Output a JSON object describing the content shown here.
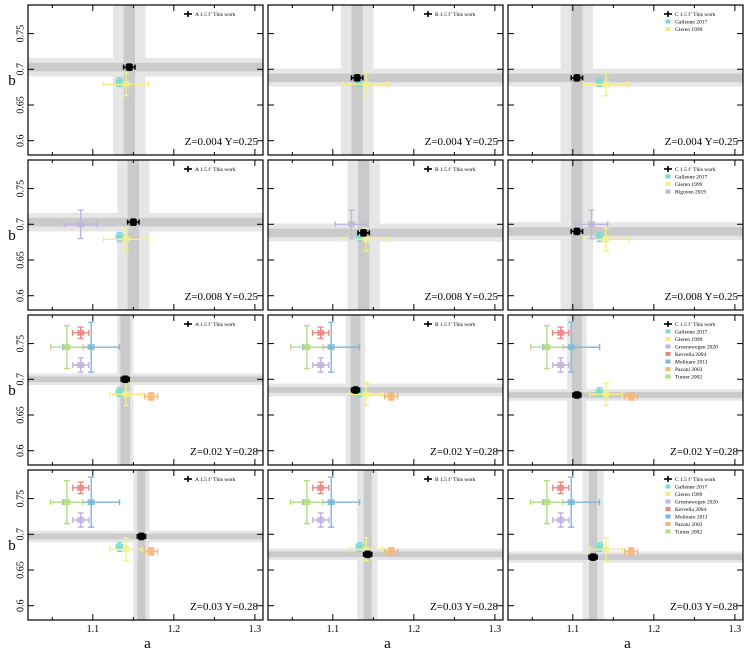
{
  "figure": {
    "xlabel": "a",
    "ylabel": "b",
    "xlim": [
      1.02,
      1.31
    ],
    "ylim": [
      0.58,
      0.79
    ],
    "xticks": [
      "1.1",
      "1.2",
      "1.3"
    ],
    "yticks": [
      "0.6",
      "0.65",
      "0.7",
      "0.75"
    ]
  },
  "colors": {
    "this_work": "#000000",
    "Gallenne 2017": "#7fd9cf",
    "Gieren 1999": "#f3ee8a",
    "Rigoyen 2019": "#c1b5db",
    "Groenewegen 2020": "#c1b5db",
    "Kervella 2004": "#f08585",
    "Molinaro 2011": "#7fb6dc",
    "Pazoni 2003": "#f3b77a",
    "Turner 2002": "#b3dd83",
    "band_dark": "#c4c4c4",
    "band_light": "#e6e6e6"
  },
  "chart_data": [
    {
      "type": "scatter",
      "panel_row": 1,
      "panel_col": 1,
      "annotation": "Z=0.004 Y=0.25",
      "this_work": {
        "label": "A 1.5 f’ This work",
        "a": 1.145,
        "b": 0.703,
        "a_err": 0.007,
        "b_err": 0.004,
        "band_a": [
          1.138,
          1.152
        ],
        "band_a_outer": [
          1.125,
          1.165
        ],
        "band_b": [
          0.697,
          0.709
        ],
        "band_b_outer": [
          0.69,
          0.716
        ]
      },
      "literature": [
        {
          "name": "Gallenne 2017",
          "a": 1.133,
          "b": 0.682,
          "a_err": 0.004,
          "b_err": 0.006
        },
        {
          "name": "Gieren 1999",
          "a": 1.141,
          "b": 0.679,
          "a_err": 0.028,
          "b_err": 0.016
        }
      ]
    },
    {
      "type": "scatter",
      "panel_row": 1,
      "panel_col": 2,
      "annotation": "Z=0.004 Y=0.25",
      "this_work": {
        "label": "B 1.5 f’ This work",
        "a": 1.13,
        "b": 0.688,
        "a_err": 0.007,
        "b_err": 0.004,
        "band_a": [
          1.123,
          1.137
        ],
        "band_a_outer": [
          1.11,
          1.15
        ],
        "band_b": [
          0.682,
          0.694
        ],
        "band_b_outer": [
          0.676,
          0.701
        ]
      },
      "literature": [
        {
          "name": "Gallenne 2017",
          "a": 1.133,
          "b": 0.682,
          "a_err": 0.004,
          "b_err": 0.006
        },
        {
          "name": "Gieren 1999",
          "a": 1.141,
          "b": 0.679,
          "a_err": 0.028,
          "b_err": 0.016
        }
      ]
    },
    {
      "type": "scatter",
      "panel_row": 1,
      "panel_col": 3,
      "annotation": "Z=0.004 Y=0.25",
      "this_work": {
        "label": "C 1.5 f’ This work",
        "a": 1.105,
        "b": 0.688,
        "a_err": 0.007,
        "b_err": 0.004,
        "band_a": [
          1.098,
          1.112
        ],
        "band_a_outer": [
          1.085,
          1.125
        ],
        "band_b": [
          0.682,
          0.694
        ],
        "band_b_outer": [
          0.676,
          0.701
        ]
      },
      "legend": [
        "C 1.5 f’ This work",
        "Gallenne 2017",
        "Gieren 1999"
      ],
      "literature": [
        {
          "name": "Gallenne 2017",
          "a": 1.133,
          "b": 0.682,
          "a_err": 0.004,
          "b_err": 0.006
        },
        {
          "name": "Gieren 1999",
          "a": 1.141,
          "b": 0.679,
          "a_err": 0.028,
          "b_err": 0.016
        }
      ]
    },
    {
      "type": "scatter",
      "panel_row": 2,
      "panel_col": 1,
      "annotation": "Z=0.008 Y=0.25",
      "this_work": {
        "label": "A 1.5 f’ This work",
        "a": 1.15,
        "b": 0.703,
        "a_err": 0.007,
        "b_err": 0.004,
        "band_a": [
          1.143,
          1.157
        ],
        "band_a_outer": [
          1.13,
          1.17
        ],
        "band_b": [
          0.697,
          0.709
        ],
        "band_b_outer": [
          0.69,
          0.716
        ]
      },
      "literature": [
        {
          "name": "Gallenne 2017",
          "a": 1.133,
          "b": 0.682,
          "a_err": 0.004,
          "b_err": 0.006
        },
        {
          "name": "Gieren 1999",
          "a": 1.141,
          "b": 0.679,
          "a_err": 0.028,
          "b_err": 0.016
        },
        {
          "name": "Rigoyen 2019",
          "a": 1.085,
          "b": 0.7,
          "a_err": 0.02,
          "b_err": 0.02
        }
      ]
    },
    {
      "type": "scatter",
      "panel_row": 2,
      "panel_col": 2,
      "annotation": "Z=0.008 Y=0.25",
      "this_work": {
        "label": "B 1.5 f’ This work",
        "a": 1.138,
        "b": 0.688,
        "a_err": 0.007,
        "b_err": 0.004,
        "band_a": [
          1.131,
          1.145
        ],
        "band_a_outer": [
          1.118,
          1.158
        ],
        "band_b": [
          0.682,
          0.694
        ],
        "band_b_outer": [
          0.676,
          0.701
        ]
      },
      "literature": [
        {
          "name": "Gallenne 2017",
          "a": 1.133,
          "b": 0.682,
          "a_err": 0.004,
          "b_err": 0.006
        },
        {
          "name": "Gieren 1999",
          "a": 1.141,
          "b": 0.679,
          "a_err": 0.028,
          "b_err": 0.016
        },
        {
          "name": "Rigoyen 2019",
          "a": 1.123,
          "b": 0.7,
          "a_err": 0.02,
          "b_err": 0.02
        }
      ]
    },
    {
      "type": "scatter",
      "panel_row": 2,
      "panel_col": 3,
      "annotation": "Z=0.008 Y=0.25",
      "this_work": {
        "label": "C 1.5 f’ This work",
        "a": 1.105,
        "b": 0.69,
        "a_err": 0.007,
        "b_err": 0.004,
        "band_a": [
          1.098,
          1.112
        ],
        "band_a_outer": [
          1.085,
          1.125
        ],
        "band_b": [
          0.684,
          0.696
        ],
        "band_b_outer": [
          0.678,
          0.703
        ]
      },
      "legend": [
        "C 1.5 f’ This work",
        "Gallenne 2017",
        "Gieren 1999",
        "Rigoyen 2019"
      ],
      "literature": [
        {
          "name": "Gallenne 2017",
          "a": 1.133,
          "b": 0.682,
          "a_err": 0.004,
          "b_err": 0.006
        },
        {
          "name": "Gieren 1999",
          "a": 1.141,
          "b": 0.679,
          "a_err": 0.028,
          "b_err": 0.016
        },
        {
          "name": "Rigoyen 2019",
          "a": 1.123,
          "b": 0.7,
          "a_err": 0.02,
          "b_err": 0.02
        }
      ]
    },
    {
      "type": "scatter",
      "panel_row": 3,
      "panel_col": 1,
      "annotation": "Z=0.02 Y=0.28",
      "this_work": {
        "label": "A 1.5 f’ This work",
        "a": 1.14,
        "b": 0.7,
        "a_err": 0.004,
        "b_err": 0.004,
        "band_a": [
          1.134,
          1.146
        ],
        "band_a_outer": [
          1.13,
          1.15
        ],
        "band_b": [
          0.696,
          0.704
        ],
        "band_b_outer": [
          0.692,
          0.708
        ]
      },
      "literature": [
        {
          "name": "Gallenne 2017",
          "a": 1.133,
          "b": 0.682,
          "a_err": 0.004,
          "b_err": 0.006
        },
        {
          "name": "Gieren 1999",
          "a": 1.141,
          "b": 0.679,
          "a_err": 0.02,
          "b_err": 0.016
        },
        {
          "name": "Groenewegen 2020",
          "a": 1.085,
          "b": 0.72,
          "a_err": 0.01,
          "b_err": 0.01
        },
        {
          "name": "Kervella 2004",
          "a": 1.085,
          "b": 0.765,
          "a_err": 0.01,
          "b_err": 0.008
        },
        {
          "name": "Molinaro 2011",
          "a": 1.098,
          "b": 0.745,
          "a_err": 0.035,
          "b_err": 0.035
        },
        {
          "name": "Pazoni 2003",
          "a": 1.172,
          "b": 0.676,
          "a_err": 0.008,
          "b_err": 0.005
        },
        {
          "name": "Turner 2002",
          "a": 1.068,
          "b": 0.745,
          "a_err": 0.02,
          "b_err": 0.03
        }
      ]
    },
    {
      "type": "scatter",
      "panel_row": 3,
      "panel_col": 2,
      "annotation": "Z=0.02 Y=0.28",
      "this_work": {
        "label": "B 1.5 f’ This work",
        "a": 1.128,
        "b": 0.685,
        "a_err": 0.004,
        "b_err": 0.004,
        "band_a": [
          1.122,
          1.134
        ],
        "band_a_outer": [
          1.116,
          1.14
        ],
        "band_b": [
          0.681,
          0.689
        ],
        "band_b_outer": [
          0.676,
          0.694
        ]
      },
      "literature": [
        {
          "name": "Gallenne 2017",
          "a": 1.133,
          "b": 0.682,
          "a_err": 0.004,
          "b_err": 0.006
        },
        {
          "name": "Gieren 1999",
          "a": 1.141,
          "b": 0.679,
          "a_err": 0.02,
          "b_err": 0.016
        },
        {
          "name": "Groenewegen 2020",
          "a": 1.085,
          "b": 0.72,
          "a_err": 0.01,
          "b_err": 0.01
        },
        {
          "name": "Kervella 2004",
          "a": 1.085,
          "b": 0.765,
          "a_err": 0.01,
          "b_err": 0.008
        },
        {
          "name": "Molinaro 2011",
          "a": 1.098,
          "b": 0.745,
          "a_err": 0.035,
          "b_err": 0.035
        },
        {
          "name": "Pazoni 2003",
          "a": 1.172,
          "b": 0.676,
          "a_err": 0.008,
          "b_err": 0.005
        },
        {
          "name": "Turner 2002",
          "a": 1.068,
          "b": 0.745,
          "a_err": 0.02,
          "b_err": 0.03
        }
      ]
    },
    {
      "type": "scatter",
      "panel_row": 3,
      "panel_col": 3,
      "annotation": "Z=0.02 Y=0.28",
      "this_work": {
        "label": "C 1.5 f’ This work",
        "a": 1.105,
        "b": 0.678,
        "a_err": 0.004,
        "b_err": 0.004,
        "band_a": [
          1.099,
          1.111
        ],
        "band_a_outer": [
          1.093,
          1.117
        ],
        "band_b": [
          0.674,
          0.682
        ],
        "band_b_outer": [
          0.67,
          0.686
        ]
      },
      "legend": [
        "C 1.5 f’ This work",
        "Gallenne 2017",
        "Gieren 1999",
        "Groenewegen 2020",
        "Kervella 2004",
        "Molinaro 2011",
        "Pazoni 2003",
        "Turner 2002"
      ],
      "literature": [
        {
          "name": "Gallenne 2017",
          "a": 1.133,
          "b": 0.682,
          "a_err": 0.004,
          "b_err": 0.006
        },
        {
          "name": "Gieren 1999",
          "a": 1.141,
          "b": 0.679,
          "a_err": 0.02,
          "b_err": 0.016
        },
        {
          "name": "Groenewegen 2020",
          "a": 1.085,
          "b": 0.72,
          "a_err": 0.01,
          "b_err": 0.01
        },
        {
          "name": "Kervella 2004",
          "a": 1.085,
          "b": 0.765,
          "a_err": 0.01,
          "b_err": 0.008
        },
        {
          "name": "Molinaro 2011",
          "a": 1.098,
          "b": 0.745,
          "a_err": 0.035,
          "b_err": 0.035
        },
        {
          "name": "Pazoni 2003",
          "a": 1.172,
          "b": 0.676,
          "a_err": 0.008,
          "b_err": 0.005
        },
        {
          "name": "Turner 2002",
          "a": 1.068,
          "b": 0.745,
          "a_err": 0.02,
          "b_err": 0.03
        }
      ]
    },
    {
      "type": "scatter",
      "panel_row": 4,
      "panel_col": 1,
      "annotation": "Z=0.03 Y=0.28",
      "this_work": {
        "label": "A 1.5 f’ This work",
        "a": 1.16,
        "b": 0.697,
        "a_err": 0.005,
        "b_err": 0.004,
        "band_a": [
          1.155,
          1.165
        ],
        "band_a_outer": [
          1.15,
          1.17
        ],
        "band_b": [
          0.693,
          0.701
        ],
        "band_b_outer": [
          0.689,
          0.705
        ]
      },
      "literature": [
        {
          "name": "Gallenne 2017",
          "a": 1.133,
          "b": 0.682,
          "a_err": 0.004,
          "b_err": 0.006
        },
        {
          "name": "Gieren 1999",
          "a": 1.141,
          "b": 0.679,
          "a_err": 0.02,
          "b_err": 0.016
        },
        {
          "name": "Groenewegen 2020",
          "a": 1.085,
          "b": 0.72,
          "a_err": 0.01,
          "b_err": 0.01
        },
        {
          "name": "Kervella 2004",
          "a": 1.085,
          "b": 0.765,
          "a_err": 0.01,
          "b_err": 0.008
        },
        {
          "name": "Molinaro 2011",
          "a": 1.098,
          "b": 0.745,
          "a_err": 0.035,
          "b_err": 0.035
        },
        {
          "name": "Pazoni 2003",
          "a": 1.172,
          "b": 0.676,
          "a_err": 0.008,
          "b_err": 0.005
        },
        {
          "name": "Turner 2002",
          "a": 1.068,
          "b": 0.745,
          "a_err": 0.02,
          "b_err": 0.03
        }
      ]
    },
    {
      "type": "scatter",
      "panel_row": 4,
      "panel_col": 2,
      "annotation": "Z=0.03 Y=0.28",
      "this_work": {
        "label": "B 1.5 f’ This work",
        "a": 1.143,
        "b": 0.672,
        "a_err": 0.005,
        "b_err": 0.004,
        "band_a": [
          1.138,
          1.148
        ],
        "band_a_outer": [
          1.13,
          1.155
        ],
        "band_b": [
          0.668,
          0.676
        ],
        "band_b_outer": [
          0.664,
          0.68
        ]
      },
      "literature": [
        {
          "name": "Gallenne 2017",
          "a": 1.133,
          "b": 0.682,
          "a_err": 0.004,
          "b_err": 0.006
        },
        {
          "name": "Gieren 1999",
          "a": 1.141,
          "b": 0.679,
          "a_err": 0.02,
          "b_err": 0.016
        },
        {
          "name": "Groenewegen 2020",
          "a": 1.085,
          "b": 0.72,
          "a_err": 0.01,
          "b_err": 0.01
        },
        {
          "name": "Kervella 2004",
          "a": 1.085,
          "b": 0.765,
          "a_err": 0.01,
          "b_err": 0.008
        },
        {
          "name": "Molinaro 2011",
          "a": 1.098,
          "b": 0.745,
          "a_err": 0.035,
          "b_err": 0.035
        },
        {
          "name": "Pazoni 2003",
          "a": 1.172,
          "b": 0.676,
          "a_err": 0.008,
          "b_err": 0.005
        },
        {
          "name": "Turner 2002",
          "a": 1.068,
          "b": 0.745,
          "a_err": 0.02,
          "b_err": 0.03
        }
      ]
    },
    {
      "type": "scatter",
      "panel_row": 4,
      "panel_col": 3,
      "annotation": "Z=0.03 Y=0.28",
      "this_work": {
        "label": "C 1.5 f’ This work",
        "a": 1.125,
        "b": 0.668,
        "a_err": 0.005,
        "b_err": 0.004,
        "band_a": [
          1.12,
          1.13
        ],
        "band_a_outer": [
          1.112,
          1.138
        ],
        "band_b": [
          0.664,
          0.672
        ],
        "band_b_outer": [
          0.66,
          0.676
        ]
      },
      "legend": [
        "C 1.5 f’ This work",
        "Gallenne 2017",
        "Gieren 1999",
        "Groenewegen 2020",
        "Kervella 2004",
        "Molinaro 2011",
        "Pazoni 2003",
        "Turner 2002"
      ],
      "literature": [
        {
          "name": "Gallenne 2017",
          "a": 1.133,
          "b": 0.682,
          "a_err": 0.004,
          "b_err": 0.006
        },
        {
          "name": "Gieren 1999",
          "a": 1.141,
          "b": 0.679,
          "a_err": 0.02,
          "b_err": 0.016
        },
        {
          "name": "Groenewegen 2020",
          "a": 1.085,
          "b": 0.72,
          "a_err": 0.01,
          "b_err": 0.01
        },
        {
          "name": "Kervella 2004",
          "a": 1.085,
          "b": 0.765,
          "a_err": 0.01,
          "b_err": 0.008
        },
        {
          "name": "Molinaro 2011",
          "a": 1.098,
          "b": 0.745,
          "a_err": 0.035,
          "b_err": 0.035
        },
        {
          "name": "Pazoni 2003",
          "a": 1.172,
          "b": 0.676,
          "a_err": 0.008,
          "b_err": 0.005
        },
        {
          "name": "Turner 2002",
          "a": 1.068,
          "b": 0.745,
          "a_err": 0.02,
          "b_err": 0.03
        }
      ]
    }
  ]
}
